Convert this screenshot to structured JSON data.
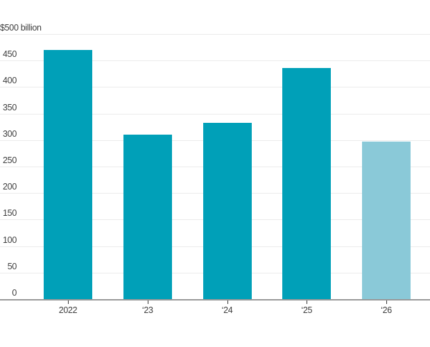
{
  "chart_data": {
    "type": "bar",
    "top_axis_label": "$500 billion",
    "categories": [
      "2022",
      "‘23",
      "‘24",
      "‘25",
      "‘26"
    ],
    "values": [
      470,
      310,
      333,
      436,
      297
    ],
    "bar_colors": [
      "#00a0b8",
      "#00a0b8",
      "#00a0b8",
      "#00a0b8",
      "#8ac9d8"
    ],
    "ylim": [
      0,
      500
    ],
    "yticks": [
      0,
      50,
      100,
      150,
      200,
      250,
      300,
      350,
      400,
      450
    ],
    "gridline_values": [
      50,
      100,
      150,
      200,
      250,
      300,
      350,
      400,
      450,
      500
    ],
    "grid": true,
    "legend": "none",
    "xlabel": "",
    "ylabel": "$500 billion",
    "colors": {
      "bar_teal": "#00a0b8",
      "bar_forecast_light_blue": "#8ac9d8",
      "gridline": "#ebebeb",
      "axis_line": "#999999",
      "tick_mark": "#333333",
      "label_text": "#3d3d3d",
      "background": "#ffffff"
    }
  }
}
